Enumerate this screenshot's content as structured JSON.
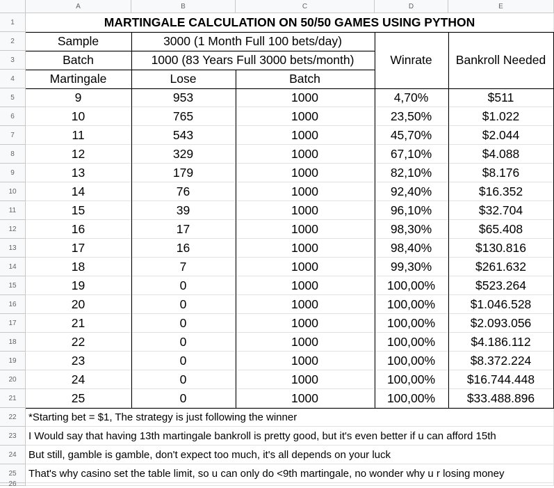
{
  "columns": [
    "A",
    "B",
    "C",
    "D",
    "E"
  ],
  "row_numbers": [
    "1",
    "2",
    "3",
    "4",
    "5",
    "6",
    "7",
    "8",
    "9",
    "10",
    "11",
    "12",
    "13",
    "14",
    "15",
    "16",
    "17",
    "18",
    "19",
    "20",
    "21",
    "22",
    "23",
    "24",
    "25",
    "26"
  ],
  "title": "MARTINGALE CALCULATION ON 50/50 GAMES USING PYTHON",
  "sample_label": "Sample",
  "sample_value": "3000 (1 Month Full 100 bets/day)",
  "batch_label": "Batch",
  "batch_value": "1000 (83 Years Full 3000 bets/month)",
  "headers": {
    "martingale": "Martingale",
    "lose": "Lose",
    "batch": "Batch",
    "winrate": "Winrate",
    "bankroll": "Bankroll Needed"
  },
  "rows": [
    {
      "martingale": "9",
      "lose": "953",
      "batch": "1000",
      "winrate": "4,70%",
      "bankroll": "$511"
    },
    {
      "martingale": "10",
      "lose": "765",
      "batch": "1000",
      "winrate": "23,50%",
      "bankroll": "$1.022"
    },
    {
      "martingale": "11",
      "lose": "543",
      "batch": "1000",
      "winrate": "45,70%",
      "bankroll": "$2.044"
    },
    {
      "martingale": "12",
      "lose": "329",
      "batch": "1000",
      "winrate": "67,10%",
      "bankroll": "$4.088"
    },
    {
      "martingale": "13",
      "lose": "179",
      "batch": "1000",
      "winrate": "82,10%",
      "bankroll": "$8.176"
    },
    {
      "martingale": "14",
      "lose": "76",
      "batch": "1000",
      "winrate": "92,40%",
      "bankroll": "$16.352"
    },
    {
      "martingale": "15",
      "lose": "39",
      "batch": "1000",
      "winrate": "96,10%",
      "bankroll": "$32.704"
    },
    {
      "martingale": "16",
      "lose": "17",
      "batch": "1000",
      "winrate": "98,30%",
      "bankroll": "$65.408"
    },
    {
      "martingale": "17",
      "lose": "16",
      "batch": "1000",
      "winrate": "98,40%",
      "bankroll": "$130.816"
    },
    {
      "martingale": "18",
      "lose": "7",
      "batch": "1000",
      "winrate": "99,30%",
      "bankroll": "$261.632"
    },
    {
      "martingale": "19",
      "lose": "0",
      "batch": "1000",
      "winrate": "100,00%",
      "bankroll": "$523.264"
    },
    {
      "martingale": "20",
      "lose": "0",
      "batch": "1000",
      "winrate": "100,00%",
      "bankroll": "$1.046.528"
    },
    {
      "martingale": "21",
      "lose": "0",
      "batch": "1000",
      "winrate": "100,00%",
      "bankroll": "$2.093.056"
    },
    {
      "martingale": "22",
      "lose": "0",
      "batch": "1000",
      "winrate": "100,00%",
      "bankroll": "$4.186.112"
    },
    {
      "martingale": "23",
      "lose": "0",
      "batch": "1000",
      "winrate": "100,00%",
      "bankroll": "$8.372.224"
    },
    {
      "martingale": "24",
      "lose": "0",
      "batch": "1000",
      "winrate": "100,00%",
      "bankroll": "$16.744.448"
    },
    {
      "martingale": "25",
      "lose": "0",
      "batch": "1000",
      "winrate": "100,00%",
      "bankroll": "$33.488.896"
    }
  ],
  "notes": [
    "*Starting bet = $1, The strategy is just following the winner",
    "I Would say that having 13th martingale bankroll is pretty good, but it's even better if u can afford 15th",
    "But still, gamble is gamble, don't expect too much, it's all depends on your luck",
    "That's why casino set the table limit, so u can only do <9th martingale, no wonder why u r losing money"
  ]
}
